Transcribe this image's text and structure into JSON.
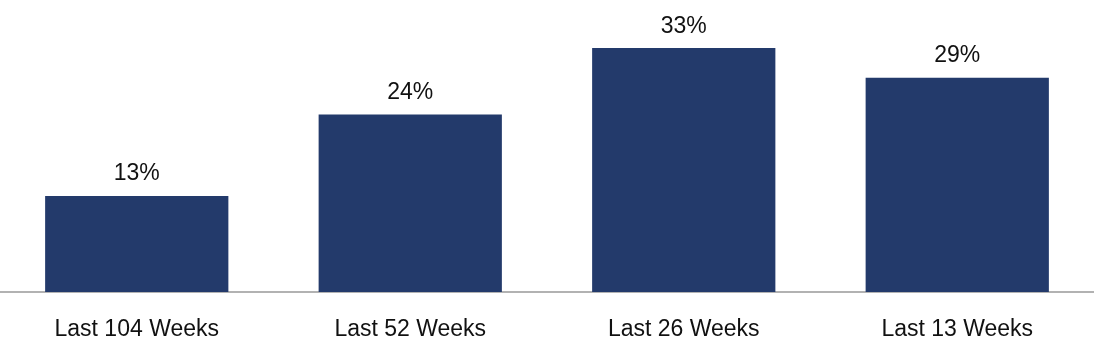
{
  "chart_data": {
    "type": "bar",
    "categories": [
      "Last 104 Weeks",
      "Last 52 Weeks",
      "Last 26 Weeks",
      "Last 13 Weeks"
    ],
    "values": [
      13,
      24,
      33,
      29
    ],
    "value_labels": [
      "13%",
      "24%",
      "33%",
      "29%"
    ],
    "color": "#233a6b"
  }
}
